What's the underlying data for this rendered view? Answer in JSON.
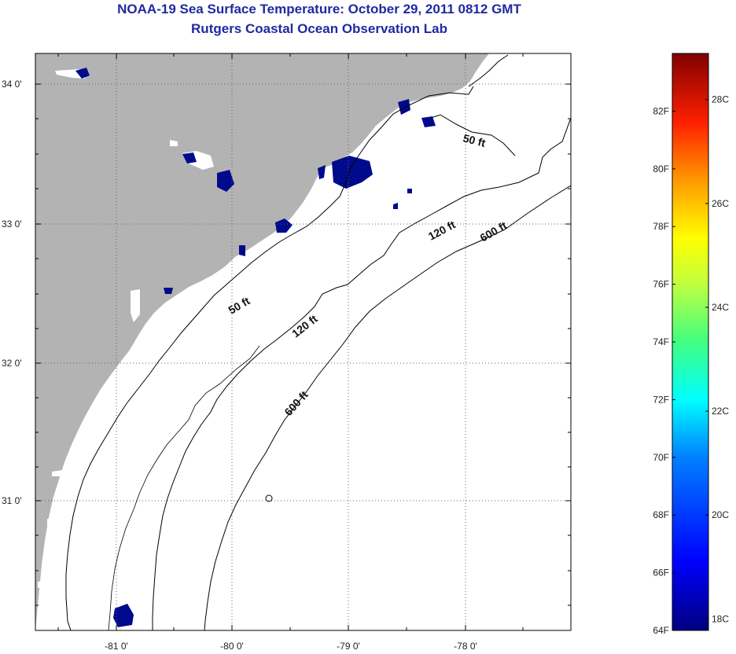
{
  "title": {
    "line1": "NOAA-19 Sea Surface Temperature:  October 29, 2011 0812 GMT",
    "line2": "Rutgers Coastal Ocean Observation Lab"
  },
  "map": {
    "lat_labels": [
      "34 0'",
      "33 0'",
      "32 0'",
      "31 0'"
    ],
    "lon_labels": [
      "-81 0'",
      "-80 0'",
      "-79 0'",
      "-78 0'"
    ],
    "contour_labels": [
      {
        "id": "50ft-north",
        "text": "50 ft"
      },
      {
        "id": "50ft-south",
        "text": "50 ft"
      },
      {
        "id": "120ft-north",
        "text": "120 ft"
      },
      {
        "id": "120ft-south",
        "text": "120 ft"
      },
      {
        "id": "600ft-north",
        "text": "600 ft"
      },
      {
        "id": "600ft-south",
        "text": "600 ft"
      }
    ],
    "colors": {
      "land": "#b3b3b3",
      "cold_sst": "#000a8c",
      "cloud": "#ffffff"
    }
  },
  "colorbar": {
    "f_labels": [
      "82F",
      "80F",
      "78F",
      "76F",
      "74F",
      "72F",
      "70F",
      "68F",
      "66F",
      "64F"
    ],
    "c_labels": [
      "28C",
      "26C",
      "24C",
      "22C",
      "20C",
      "18C"
    ],
    "range_f": [
      64,
      84
    ],
    "range_c": [
      18,
      29
    ]
  }
}
